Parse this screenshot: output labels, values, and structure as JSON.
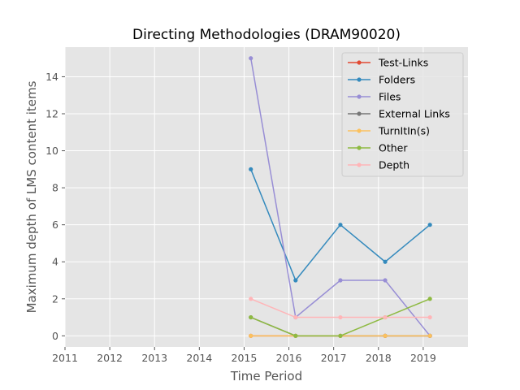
{
  "chart_data": {
    "type": "line",
    "title": "Directing Methodologies (DRAM90020)",
    "xlabel": "Time Period",
    "ylabel": "Maximum depth of LMS content items",
    "xlim": [
      2011,
      2020
    ],
    "ylim": [
      -0.6,
      15.6
    ],
    "xticks": [
      2011,
      2012,
      2013,
      2014,
      2015,
      2016,
      2017,
      2018,
      2019
    ],
    "yticks": [
      0,
      2,
      4,
      6,
      8,
      10,
      12,
      14
    ],
    "grid": true,
    "legend_position": "top-right",
    "x": [
      2015.15,
      2016.15,
      2017.15,
      2018.15,
      2019.15
    ],
    "series": [
      {
        "name": "Test-Links",
        "color": "#e24a33",
        "values": [
          0,
          0,
          0,
          0,
          0
        ]
      },
      {
        "name": "Folders",
        "color": "#348abd",
        "values": [
          9,
          3,
          6,
          4,
          6
        ]
      },
      {
        "name": "Files",
        "color": "#988ed5",
        "values": [
          15,
          1,
          3,
          3,
          0
        ]
      },
      {
        "name": "External Links",
        "color": "#777777",
        "values": [
          1,
          0,
          0,
          0,
          0
        ]
      },
      {
        "name": "TurnItIn(s)",
        "color": "#fbc15e",
        "values": [
          0,
          0,
          0,
          0,
          0
        ]
      },
      {
        "name": "Other",
        "color": "#8eba42",
        "values": [
          1,
          0,
          0,
          1,
          2
        ]
      },
      {
        "name": "Depth",
        "color": "#ffb5b8",
        "values": [
          2,
          1,
          1,
          1,
          1
        ]
      }
    ]
  }
}
